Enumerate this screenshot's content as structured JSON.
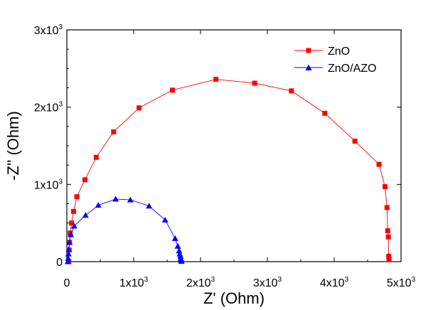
{
  "chart_data": {
    "type": "scatter",
    "title": "",
    "xlabel": "Z' (Ohm)",
    "ylabel": "-Z'' (Ohm)",
    "xlim": [
      0,
      5000
    ],
    "ylim": [
      0,
      3000
    ],
    "x_ticks": [
      {
        "value": 0,
        "mant": "0",
        "exp": ""
      },
      {
        "value": 1000,
        "mant": "1x10",
        "exp": "3"
      },
      {
        "value": 2000,
        "mant": "2x10",
        "exp": "3"
      },
      {
        "value": 3000,
        "mant": "3x10",
        "exp": "3"
      },
      {
        "value": 4000,
        "mant": "4x10",
        "exp": "3"
      },
      {
        "value": 5000,
        "mant": "5x10",
        "exp": "3"
      }
    ],
    "y_ticks": [
      {
        "value": 0,
        "mant": "0",
        "exp": ""
      },
      {
        "value": 1000,
        "mant": "1x10",
        "exp": "3"
      },
      {
        "value": 2000,
        "mant": "2x10",
        "exp": "3"
      },
      {
        "value": 3000,
        "mant": "3x10",
        "exp": "3"
      }
    ],
    "legend_position": "top-right",
    "series": [
      {
        "name": "ZnO",
        "color": "#ff0000",
        "marker": "square",
        "x": [
          30,
          35,
          40,
          50,
          70,
          100,
          150,
          270,
          440,
          700,
          1080,
          1580,
          2230,
          2810,
          3360,
          3860,
          4310,
          4670,
          4760,
          4790,
          4800,
          4810,
          4815,
          4820
        ],
        "y": [
          0,
          150,
          250,
          370,
          500,
          650,
          840,
          1060,
          1350,
          1680,
          1990,
          2220,
          2360,
          2310,
          2210,
          1920,
          1560,
          1260,
          970,
          700,
          400,
          320,
          70,
          30
        ]
      },
      {
        "name": "ZnO/AZO",
        "color": "#0000ff",
        "marker": "triangle",
        "x": [
          15,
          20,
          25,
          30,
          40,
          60,
          110,
          280,
          470,
          730,
          950,
          1230,
          1470,
          1620,
          1660,
          1680,
          1690,
          1700,
          1705,
          1710,
          1715
        ],
        "y": [
          0,
          40,
          100,
          160,
          250,
          350,
          460,
          600,
          730,
          810,
          800,
          720,
          540,
          300,
          200,
          140,
          100,
          70,
          40,
          20,
          5
        ]
      }
    ]
  }
}
